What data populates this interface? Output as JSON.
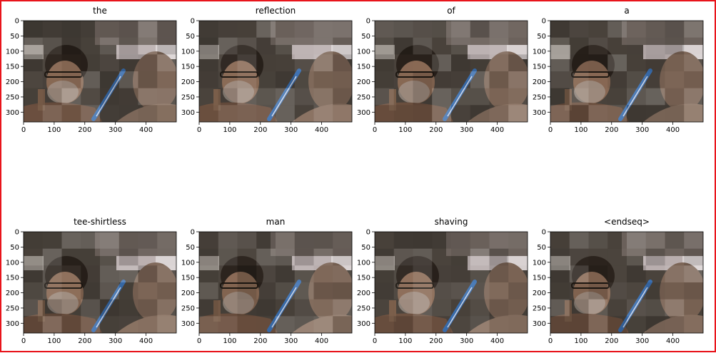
{
  "chart_data": [
    {
      "type": "heatmap",
      "title": "the",
      "xlim": [
        0,
        499
      ],
      "ylim": [
        332,
        0
      ],
      "xticks": [
        0,
        100,
        200,
        300,
        400
      ],
      "yticks": [
        0,
        50,
        100,
        150,
        200,
        250,
        300
      ]
    },
    {
      "type": "heatmap",
      "title": "reflection",
      "xlim": [
        0,
        499
      ],
      "ylim": [
        332,
        0
      ],
      "xticks": [
        0,
        100,
        200,
        300,
        400
      ],
      "yticks": [
        0,
        50,
        100,
        150,
        200,
        250,
        300
      ]
    },
    {
      "type": "heatmap",
      "title": "of",
      "xlim": [
        0,
        499
      ],
      "ylim": [
        332,
        0
      ],
      "xticks": [
        0,
        100,
        200,
        300,
        400
      ],
      "yticks": [
        0,
        50,
        100,
        150,
        200,
        250,
        300
      ]
    },
    {
      "type": "heatmap",
      "title": "a",
      "xlim": [
        0,
        499
      ],
      "ylim": [
        332,
        0
      ],
      "xticks": [
        0,
        100,
        200,
        300,
        400
      ],
      "yticks": [
        0,
        50,
        100,
        150,
        200,
        250,
        300
      ]
    },
    {
      "type": "heatmap",
      "title": "tee-shirtless",
      "xlim": [
        0,
        499
      ],
      "ylim": [
        332,
        0
      ],
      "xticks": [
        0,
        100,
        200,
        300,
        400
      ],
      "yticks": [
        0,
        50,
        100,
        150,
        200,
        250,
        300
      ]
    },
    {
      "type": "heatmap",
      "title": "man",
      "xlim": [
        0,
        499
      ],
      "ylim": [
        332,
        0
      ],
      "xticks": [
        0,
        100,
        200,
        300,
        400
      ],
      "yticks": [
        0,
        50,
        100,
        150,
        200,
        250,
        300
      ]
    },
    {
      "type": "heatmap",
      "title": "shaving",
      "xlim": [
        0,
        499
      ],
      "ylim": [
        332,
        0
      ],
      "xticks": [
        0,
        100,
        200,
        300,
        400
      ],
      "yticks": [
        0,
        50,
        100,
        150,
        200,
        250,
        300
      ]
    },
    {
      "type": "heatmap",
      "title": "<endseq>",
      "xlim": [
        0,
        499
      ],
      "ylim": [
        332,
        0
      ],
      "xticks": [
        0,
        100,
        200,
        300,
        400
      ],
      "yticks": [
        0,
        50,
        100,
        150,
        200,
        250,
        300
      ]
    }
  ],
  "colors": {
    "frame_border": "#e8141b",
    "photo_background": "#4a433c",
    "skin": "#8a6a55",
    "hair": "#2a221c",
    "razor_blue": "#3b6fb0",
    "highlight": "#d9d2d2"
  }
}
